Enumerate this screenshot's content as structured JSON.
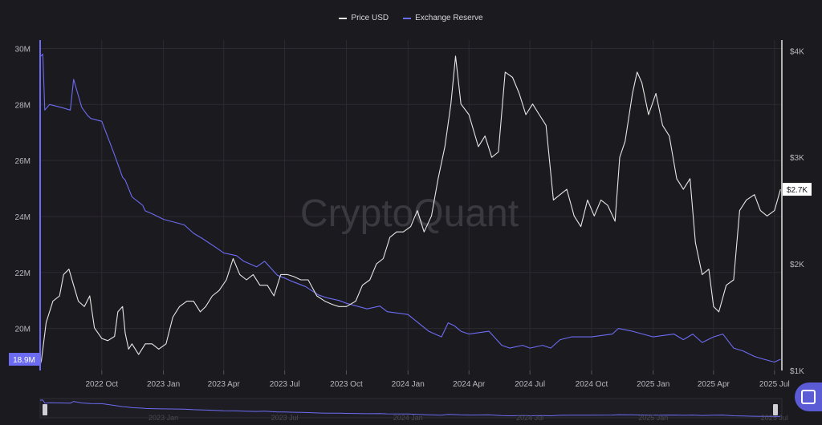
{
  "legend": {
    "price_label": "Price USD",
    "reserve_label": "Exchange Reserve"
  },
  "watermark": "CryptoQuant",
  "colors": {
    "background": "#1b1a1f",
    "price": "#e6e6e6",
    "reserve": "#6c6cf2",
    "grid": "#2c2b32",
    "axis_text": "#b8b8be"
  },
  "chart_data": {
    "type": "line",
    "x_tick_labels": [
      "2022 Oct",
      "2023 Jan",
      "2023 Apr",
      "2023 Jul",
      "2023 Oct",
      "2024 Jan",
      "2024 Apr",
      "2024 Jul",
      "2024 Oct",
      "2025 Jan",
      "2025 Apr",
      "2025 Jul"
    ],
    "left_axis": {
      "ticks": [
        20000000,
        22000000,
        24000000,
        26000000,
        28000000,
        30000000
      ],
      "tick_labels": [
        "20M",
        "22M",
        "24M",
        "26M",
        "28M",
        "30M"
      ],
      "range": [
        18500000,
        30300000
      ]
    },
    "right_axis": {
      "ticks": [
        1000,
        2000,
        3000,
        4000
      ],
      "tick_labels": [
        "$1K",
        "$2K",
        "$3K",
        "$4K"
      ],
      "range": [
        1000,
        4100
      ]
    },
    "current_labels": {
      "reserve": "18.9M",
      "price": "$2.7K"
    },
    "series": [
      {
        "name": "Exchange Reserve",
        "axis": "left",
        "color": "#6c6cf2",
        "x": [
          "2022-07-01",
          "2022-07-05",
          "2022-07-08",
          "2022-07-15",
          "2022-08-01",
          "2022-08-15",
          "2022-08-20",
          "2022-09-01",
          "2022-09-10",
          "2022-09-15",
          "2022-10-01",
          "2022-10-20",
          "2022-11-01",
          "2022-11-05",
          "2022-11-15",
          "2022-12-01",
          "2022-12-05",
          "2022-12-15",
          "2023-01-01",
          "2023-02-01",
          "2023-02-15",
          "2023-03-01",
          "2023-03-20",
          "2023-04-01",
          "2023-04-20",
          "2023-05-01",
          "2023-05-20",
          "2023-06-01",
          "2023-06-20",
          "2023-07-01",
          "2023-07-10",
          "2023-08-01",
          "2023-08-20",
          "2023-09-01",
          "2023-09-20",
          "2023-10-01",
          "2023-11-01",
          "2023-11-20",
          "2023-12-01",
          "2024-01-01",
          "2024-02-01",
          "2024-02-20",
          "2024-03-01",
          "2024-03-10",
          "2024-03-20",
          "2024-04-01",
          "2024-05-01",
          "2024-05-20",
          "2024-06-01",
          "2024-06-20",
          "2024-07-01",
          "2024-07-20",
          "2024-08-01",
          "2024-08-15",
          "2024-09-01",
          "2024-10-01",
          "2024-11-01",
          "2024-11-10",
          "2024-12-01",
          "2025-01-01",
          "2025-02-01",
          "2025-02-15",
          "2025-03-01",
          "2025-03-15",
          "2025-04-01",
          "2025-04-15",
          "2025-05-01",
          "2025-05-15",
          "2025-06-01",
          "2025-06-15",
          "2025-07-01",
          "2025-07-10"
        ],
        "values": [
          29700000,
          29800000,
          27800000,
          28000000,
          27900000,
          27800000,
          28900000,
          27900000,
          27600000,
          27500000,
          27400000,
          26200000,
          25400000,
          25300000,
          24700000,
          24400000,
          24200000,
          24100000,
          23900000,
          23700000,
          23400000,
          23200000,
          22900000,
          22700000,
          22600000,
          22400000,
          22200000,
          22400000,
          21900000,
          21800000,
          21700000,
          21500000,
          21200000,
          21100000,
          21000000,
          20900000,
          20700000,
          20800000,
          20600000,
          20500000,
          19900000,
          19700000,
          20200000,
          20100000,
          19900000,
          19800000,
          19900000,
          19400000,
          19300000,
          19400000,
          19300000,
          19400000,
          19300000,
          19600000,
          19700000,
          19700000,
          19800000,
          20000000,
          19900000,
          19700000,
          19800000,
          19600000,
          19800000,
          19500000,
          19700000,
          19800000,
          19300000,
          19200000,
          19000000,
          18900000,
          18800000,
          18900000
        ]
      },
      {
        "name": "Price USD",
        "axis": "right",
        "color": "#e6e6e6",
        "x": [
          "2022-07-01",
          "2022-07-03",
          "2022-07-10",
          "2022-07-20",
          "2022-07-30",
          "2022-08-05",
          "2022-08-13",
          "2022-08-20",
          "2022-08-27",
          "2022-09-05",
          "2022-09-13",
          "2022-09-20",
          "2022-10-01",
          "2022-10-10",
          "2022-10-20",
          "2022-10-25",
          "2022-11-01",
          "2022-11-05",
          "2022-11-10",
          "2022-11-15",
          "2022-11-25",
          "2022-12-05",
          "2022-12-15",
          "2022-12-25",
          "2023-01-05",
          "2023-01-15",
          "2023-01-25",
          "2023-02-05",
          "2023-02-15",
          "2023-02-25",
          "2023-03-05",
          "2023-03-15",
          "2023-03-25",
          "2023-04-05",
          "2023-04-15",
          "2023-04-25",
          "2023-05-05",
          "2023-05-15",
          "2023-05-25",
          "2023-06-05",
          "2023-06-15",
          "2023-06-25",
          "2023-07-05",
          "2023-07-15",
          "2023-07-25",
          "2023-08-05",
          "2023-08-18",
          "2023-08-30",
          "2023-09-10",
          "2023-09-20",
          "2023-10-01",
          "2023-10-15",
          "2023-10-25",
          "2023-11-05",
          "2023-11-15",
          "2023-11-25",
          "2023-12-05",
          "2023-12-15",
          "2023-12-25",
          "2024-01-05",
          "2024-01-15",
          "2024-01-25",
          "2024-02-05",
          "2024-02-15",
          "2024-02-25",
          "2024-03-05",
          "2024-03-12",
          "2024-03-20",
          "2024-04-01",
          "2024-04-15",
          "2024-04-25",
          "2024-05-05",
          "2024-05-15",
          "2024-05-25",
          "2024-06-05",
          "2024-06-15",
          "2024-06-25",
          "2024-07-05",
          "2024-07-15",
          "2024-07-25",
          "2024-08-05",
          "2024-08-15",
          "2024-08-25",
          "2024-09-05",
          "2024-09-15",
          "2024-09-25",
          "2024-10-05",
          "2024-10-15",
          "2024-10-25",
          "2024-11-05",
          "2024-11-12",
          "2024-11-20",
          "2024-12-01",
          "2024-12-08",
          "2024-12-15",
          "2024-12-25",
          "2025-01-05",
          "2025-01-15",
          "2025-01-25",
          "2025-02-05",
          "2025-02-15",
          "2025-02-25",
          "2025-03-05",
          "2025-03-15",
          "2025-03-25",
          "2025-04-01",
          "2025-04-09",
          "2025-04-20",
          "2025-05-01",
          "2025-05-10",
          "2025-05-20",
          "2025-06-01",
          "2025-06-10",
          "2025-06-20",
          "2025-07-01",
          "2025-07-10"
        ],
        "values": [
          1050,
          1100,
          1450,
          1650,
          1700,
          1900,
          1950,
          1800,
          1650,
          1600,
          1700,
          1400,
          1300,
          1280,
          1320,
          1550,
          1600,
          1350,
          1200,
          1250,
          1150,
          1250,
          1250,
          1200,
          1250,
          1500,
          1600,
          1650,
          1650,
          1550,
          1600,
          1700,
          1750,
          1850,
          2050,
          1900,
          1850,
          1900,
          1800,
          1800,
          1700,
          1900,
          1900,
          1880,
          1850,
          1850,
          1700,
          1650,
          1620,
          1600,
          1600,
          1650,
          1800,
          1850,
          2000,
          2050,
          2250,
          2300,
          2300,
          2350,
          2500,
          2300,
          2450,
          2800,
          3100,
          3500,
          3950,
          3500,
          3400,
          3100,
          3200,
          3000,
          3050,
          3800,
          3750,
          3600,
          3400,
          3500,
          3400,
          3300,
          2600,
          2650,
          2700,
          2450,
          2350,
          2600,
          2450,
          2600,
          2550,
          2400,
          3000,
          3150,
          3600,
          3800,
          3700,
          3400,
          3600,
          3300,
          3200,
          2800,
          2700,
          2800,
          2200,
          1900,
          1950,
          1600,
          1550,
          1800,
          1850,
          2500,
          2600,
          2650,
          2500,
          2450,
          2500,
          2700
        ]
      }
    ]
  }
}
